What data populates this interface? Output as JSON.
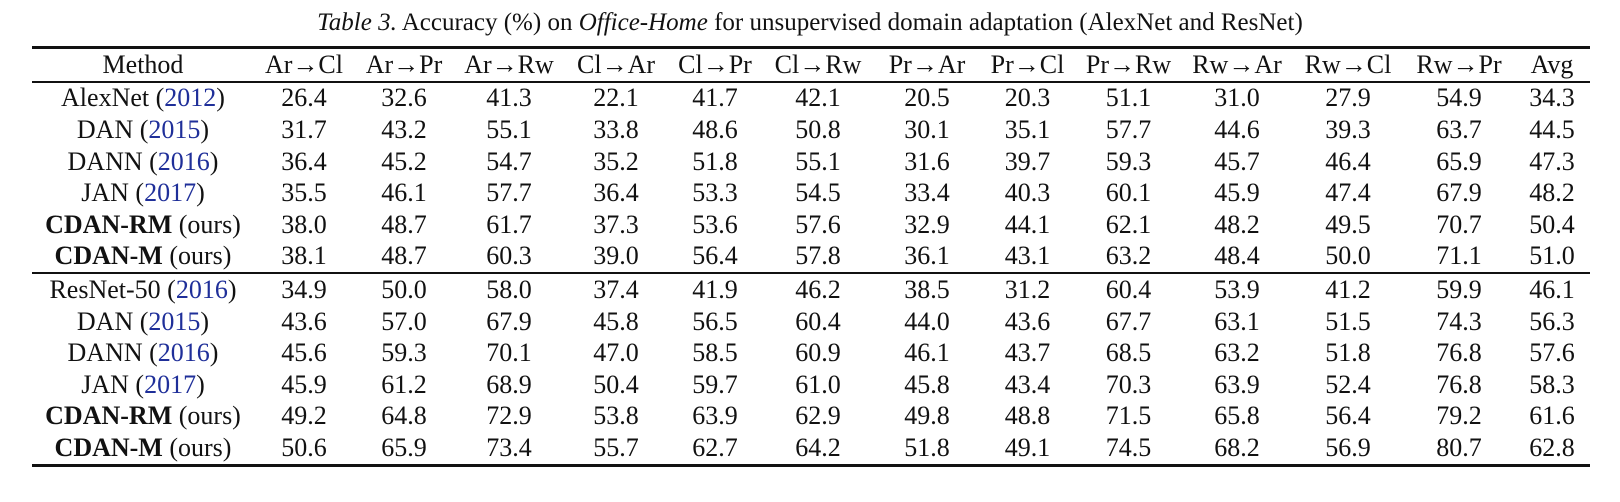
{
  "caption": {
    "label": "Table 3.",
    "text_before": " Accuracy (%) on ",
    "dataset": "Office-Home",
    "text_after": " for unsupervised domain adaptation (AlexNet and ResNet)"
  },
  "header": [
    "Method",
    "Ar→Cl",
    "Ar→Pr",
    "Ar→Rw",
    "Cl→Ar",
    "Cl→Pr",
    "Cl→Rw",
    "Pr→Ar",
    "Pr→Cl",
    "Pr→Rw",
    "Rw→Ar",
    "Rw→Cl",
    "Rw→Pr",
    "Avg"
  ],
  "rows": [
    {
      "method": "AlexNet",
      "cite": "2012",
      "suffix": "",
      "method_bold": false,
      "values": [
        "26.4",
        "32.6",
        "41.3",
        "22.1",
        "41.7",
        "42.1",
        "20.5",
        "20.3",
        "51.1",
        "31.0",
        "27.9",
        "54.9",
        "34.3"
      ],
      "bold": []
    },
    {
      "method": "DAN",
      "cite": "2015",
      "suffix": "",
      "method_bold": false,
      "values": [
        "31.7",
        "43.2",
        "55.1",
        "33.8",
        "48.6",
        "50.8",
        "30.1",
        "35.1",
        "57.7",
        "44.6",
        "39.3",
        "63.7",
        "44.5"
      ],
      "bold": []
    },
    {
      "method": "DANN",
      "cite": "2016",
      "suffix": "",
      "method_bold": false,
      "values": [
        "36.4",
        "45.2",
        "54.7",
        "35.2",
        "51.8",
        "55.1",
        "31.6",
        "39.7",
        "59.3",
        "45.7",
        "46.4",
        "65.9",
        "47.3"
      ],
      "bold": []
    },
    {
      "method": "JAN",
      "cite": "2017",
      "suffix": "",
      "method_bold": false,
      "values": [
        "35.5",
        "46.1",
        "57.7",
        "36.4",
        "53.3",
        "54.5",
        "33.4",
        "40.3",
        "60.1",
        "45.9",
        "47.4",
        "67.9",
        "48.2"
      ],
      "bold": []
    },
    {
      "method": "CDAN-RM",
      "cite": "",
      "suffix": "(ours)",
      "method_bold": true,
      "values": [
        "38.0",
        "48.7",
        "61.7",
        "37.3",
        "53.6",
        "57.6",
        "32.9",
        "44.1",
        "62.1",
        "48.2",
        "49.5",
        "70.7",
        "50.4"
      ],
      "bold": [
        1,
        2,
        7
      ]
    },
    {
      "method": "CDAN-M",
      "cite": "",
      "suffix": "(ours)",
      "method_bold": true,
      "values": [
        "38.1",
        "48.7",
        "60.3",
        "39.0",
        "56.4",
        "57.8",
        "36.1",
        "43.1",
        "63.2",
        "48.4",
        "50.0",
        "71.1",
        "51.0"
      ],
      "bold": [
        0,
        1,
        3,
        4,
        5,
        6,
        8,
        9,
        10,
        11,
        12
      ]
    },
    {
      "method": "ResNet-50",
      "cite": "2016",
      "suffix": "",
      "method_bold": false,
      "separator": true,
      "values": [
        "34.9",
        "50.0",
        "58.0",
        "37.4",
        "41.9",
        "46.2",
        "38.5",
        "31.2",
        "60.4",
        "53.9",
        "41.2",
        "59.9",
        "46.1"
      ],
      "bold": []
    },
    {
      "method": "DAN",
      "cite": "2015",
      "suffix": "",
      "method_bold": false,
      "values": [
        "43.6",
        "57.0",
        "67.9",
        "45.8",
        "56.5",
        "60.4",
        "44.0",
        "43.6",
        "67.7",
        "63.1",
        "51.5",
        "74.3",
        "56.3"
      ],
      "bold": []
    },
    {
      "method": "DANN",
      "cite": "2016",
      "suffix": "",
      "method_bold": false,
      "values": [
        "45.6",
        "59.3",
        "70.1",
        "47.0",
        "58.5",
        "60.9",
        "46.1",
        "43.7",
        "68.5",
        "63.2",
        "51.8",
        "76.8",
        "57.6"
      ],
      "bold": []
    },
    {
      "method": "JAN",
      "cite": "2017",
      "suffix": "",
      "method_bold": false,
      "values": [
        "45.9",
        "61.2",
        "68.9",
        "50.4",
        "59.7",
        "61.0",
        "45.8",
        "43.4",
        "70.3",
        "63.9",
        "52.4",
        "76.8",
        "58.3"
      ],
      "bold": []
    },
    {
      "method": "CDAN-RM",
      "cite": "",
      "suffix": "(ours)",
      "method_bold": true,
      "values": [
        "49.2",
        "64.8",
        "72.9",
        "53.8",
        "63.9",
        "62.9",
        "49.8",
        "48.8",
        "71.5",
        "65.8",
        "56.4",
        "79.2",
        "61.6"
      ],
      "bold": [
        4
      ]
    },
    {
      "method": "CDAN-M",
      "cite": "",
      "suffix": "(ours)",
      "method_bold": true,
      "values": [
        "50.6",
        "65.9",
        "73.4",
        "55.7",
        "62.7",
        "64.2",
        "51.8",
        "49.1",
        "74.5",
        "68.2",
        "56.9",
        "80.7",
        "62.8"
      ],
      "bold": [
        0,
        1,
        2,
        3,
        5,
        6,
        7,
        8,
        9,
        10,
        11,
        12
      ]
    }
  ]
}
